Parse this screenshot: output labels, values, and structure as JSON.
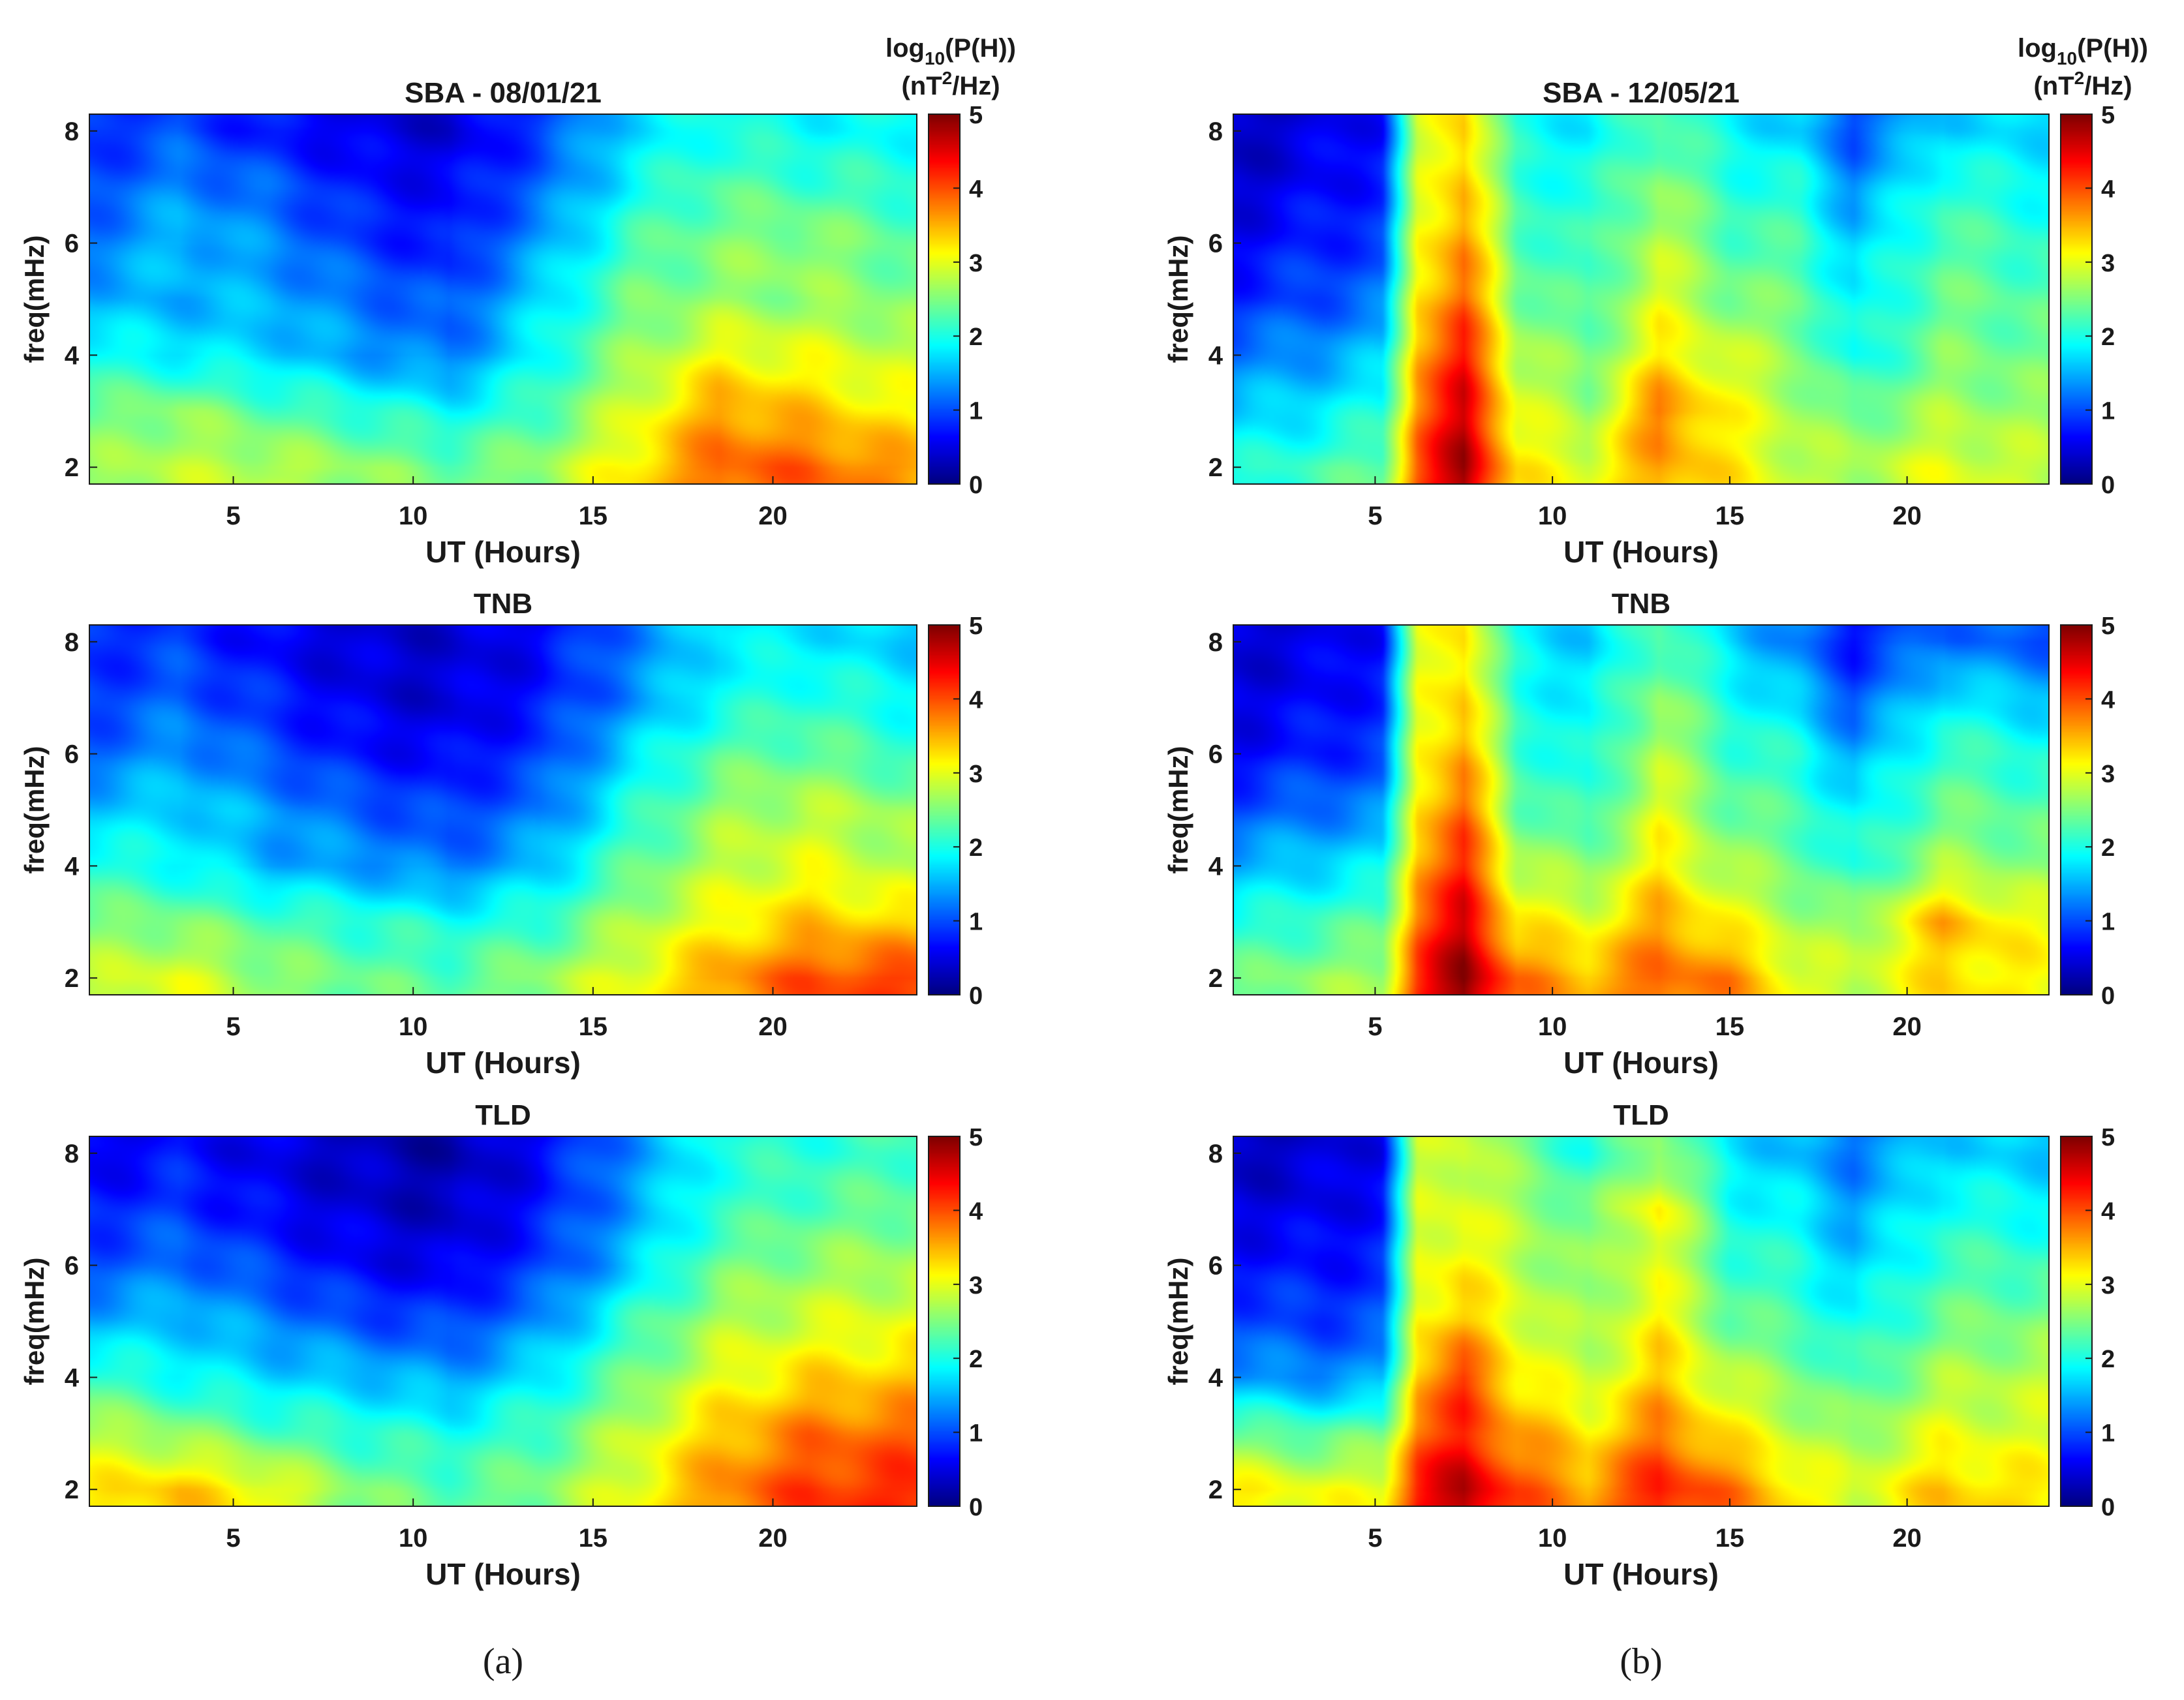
{
  "figure": {
    "panel_labels": [
      "(a)",
      "(b)"
    ]
  },
  "colorbar": {
    "label_line1": "log10(P(H))",
    "label_line2": "(nT2/Hz)",
    "min": 0,
    "max": 5,
    "ticks": [
      "0",
      "1",
      "2",
      "3",
      "4",
      "5"
    ],
    "colormap": "jet"
  },
  "colors": {
    "axis": "#1a1a1a",
    "background": "#ffffff"
  },
  "chart_data": [
    {
      "type": "heatmap",
      "column": "(a)",
      "title": "SBA - 08/01/21",
      "station": "SBA",
      "date": "08/01/21",
      "xlabel": "UT (Hours)",
      "ylabel": "freq(mHz)",
      "xlim": [
        1,
        24
      ],
      "ylim": [
        1.7,
        8.3
      ],
      "xticks": [
        5,
        10,
        15,
        20
      ],
      "yticks": [
        2,
        4,
        6,
        8
      ],
      "clim": [
        0,
        5
      ],
      "x": [
        1,
        3.5,
        6,
        8.5,
        11,
        13.5,
        16,
        18.5,
        21,
        24
      ],
      "y": [
        2,
        3,
        4,
        5,
        6,
        7,
        8
      ],
      "z": [
        [
          2.6,
          2.8,
          2.8,
          2.6,
          2.4,
          2.6,
          3.2,
          3.9,
          3.9,
          3.6
        ],
        [
          2.4,
          2.6,
          2.3,
          2.1,
          1.9,
          2.2,
          2.9,
          3.6,
          3.4,
          3.1
        ],
        [
          2.0,
          1.8,
          1.7,
          1.4,
          1.2,
          1.9,
          2.6,
          3.1,
          3.0,
          2.8
        ],
        [
          1.5,
          1.5,
          1.5,
          1.2,
          1.0,
          1.7,
          2.4,
          2.6,
          2.6,
          2.5
        ],
        [
          1.2,
          1.6,
          1.3,
          0.9,
          0.7,
          1.4,
          2.2,
          2.5,
          2.6,
          2.3
        ],
        [
          1.0,
          1.3,
          1.1,
          0.7,
          0.6,
          1.1,
          1.9,
          2.3,
          2.2,
          2.1
        ],
        [
          0.8,
          1.0,
          0.7,
          0.5,
          0.4,
          0.9,
          1.7,
          2.0,
          1.9,
          1.9
        ]
      ]
    },
    {
      "type": "heatmap",
      "column": "(a)",
      "title": "TNB",
      "station": "TNB",
      "xlabel": "UT (Hours)",
      "ylabel": "freq(mHz)",
      "xlim": [
        1,
        24
      ],
      "ylim": [
        1.7,
        8.3
      ],
      "xticks": [
        5,
        10,
        15,
        20
      ],
      "yticks": [
        2,
        4,
        6,
        8
      ],
      "clim": [
        0,
        5
      ],
      "x": [
        1,
        3.5,
        6,
        8.5,
        11,
        13.5,
        16,
        18.5,
        21,
        24
      ],
      "y": [
        2,
        3,
        4,
        5,
        6,
        7,
        8
      ],
      "z": [
        [
          2.8,
          3.0,
          2.6,
          2.4,
          2.3,
          2.6,
          3.0,
          3.6,
          4.0,
          4.1
        ],
        [
          2.5,
          2.5,
          2.3,
          2.1,
          2.0,
          2.1,
          2.7,
          3.1,
          3.4,
          3.3
        ],
        [
          2.1,
          1.9,
          1.5,
          1.4,
          1.2,
          1.6,
          2.3,
          2.8,
          3.0,
          2.7
        ],
        [
          1.6,
          1.7,
          1.4,
          1.1,
          0.9,
          1.2,
          2.0,
          2.6,
          2.8,
          2.6
        ],
        [
          1.1,
          1.4,
          1.0,
          0.7,
          0.6,
          0.9,
          1.7,
          2.3,
          2.4,
          2.1
        ],
        [
          0.9,
          1.1,
          0.8,
          0.5,
          0.4,
          0.7,
          1.3,
          1.9,
          2.1,
          1.9
        ],
        [
          0.8,
          0.9,
          0.6,
          0.4,
          0.4,
          0.6,
          1.2,
          1.8,
          1.8,
          1.6
        ]
      ]
    },
    {
      "type": "heatmap",
      "column": "(a)",
      "title": "TLD",
      "station": "TLD",
      "xlabel": "UT (Hours)",
      "ylabel": "freq(mHz)",
      "xlim": [
        1,
        24
      ],
      "ylim": [
        1.7,
        8.3
      ],
      "xticks": [
        5,
        10,
        15,
        20
      ],
      "yticks": [
        2,
        4,
        6,
        8
      ],
      "clim": [
        0,
        5
      ],
      "x": [
        1,
        3.5,
        6,
        8.5,
        11,
        13.5,
        16,
        18.5,
        21,
        24
      ],
      "y": [
        2,
        3,
        4,
        5,
        6,
        7,
        8
      ],
      "z": [
        [
          3.2,
          3.4,
          3.1,
          2.5,
          2.3,
          2.5,
          3.0,
          3.7,
          4.1,
          4.2
        ],
        [
          2.8,
          2.6,
          2.3,
          2.1,
          2.0,
          2.2,
          2.8,
          3.4,
          3.8,
          3.9
        ],
        [
          2.2,
          1.9,
          1.7,
          1.6,
          1.4,
          1.8,
          2.4,
          3.0,
          3.3,
          3.4
        ],
        [
          1.5,
          1.6,
          1.3,
          1.0,
          0.9,
          1.3,
          2.1,
          2.7,
          2.9,
          3.0
        ],
        [
          1.0,
          1.2,
          0.9,
          0.6,
          0.5,
          0.9,
          1.6,
          2.4,
          2.6,
          2.7
        ],
        [
          0.8,
          0.9,
          0.6,
          0.4,
          0.3,
          0.7,
          1.4,
          2.1,
          2.3,
          2.4
        ],
        [
          0.5,
          0.7,
          0.5,
          0.3,
          0.2,
          0.6,
          1.3,
          2.0,
          2.1,
          2.2
        ]
      ]
    },
    {
      "type": "heatmap",
      "column": "(b)",
      "title": "SBA - 12/05/21",
      "station": "SBA",
      "date": "12/05/21",
      "xlabel": "UT (Hours)",
      "ylabel": "freq(mHz)",
      "xlim": [
        1,
        24
      ],
      "ylim": [
        1.7,
        8.3
      ],
      "xticks": [
        5,
        10,
        15,
        20
      ],
      "yticks": [
        2,
        4,
        6,
        8
      ],
      "clim": [
        0,
        5
      ],
      "x": [
        1,
        3.5,
        5.2,
        6.2,
        7.5,
        9,
        11,
        13,
        15,
        17,
        18.5,
        21,
        24
      ],
      "y": [
        2,
        3,
        4,
        5,
        6,
        7,
        8
      ],
      "z": [
        [
          2.0,
          2.2,
          2.4,
          4.0,
          4.9,
          3.2,
          3.0,
          3.6,
          3.2,
          2.8,
          2.7,
          3.0,
          2.8
        ],
        [
          1.6,
          1.8,
          2.0,
          3.8,
          4.6,
          3.0,
          2.6,
          3.8,
          3.1,
          2.7,
          2.4,
          2.7,
          2.6
        ],
        [
          1.2,
          1.4,
          1.6,
          3.6,
          4.3,
          2.8,
          2.4,
          3.2,
          2.9,
          2.5,
          1.9,
          2.5,
          2.4
        ],
        [
          0.8,
          1.0,
          1.2,
          3.3,
          3.9,
          2.5,
          2.2,
          3.0,
          2.5,
          2.4,
          1.8,
          2.4,
          2.3
        ],
        [
          0.6,
          0.8,
          0.9,
          3.1,
          3.7,
          2.3,
          2.1,
          2.8,
          2.3,
          2.2,
          1.6,
          2.3,
          2.1
        ],
        [
          0.4,
          0.6,
          0.8,
          2.9,
          3.5,
          2.1,
          2.0,
          2.6,
          2.1,
          2.0,
          1.3,
          2.1,
          1.9
        ],
        [
          0.3,
          0.5,
          0.7,
          2.8,
          3.4,
          2.0,
          1.8,
          2.3,
          1.9,
          1.6,
          1.0,
          1.7,
          1.7
        ]
      ]
    },
    {
      "type": "heatmap",
      "column": "(b)",
      "title": "TNB",
      "station": "TNB",
      "xlabel": "UT (Hours)",
      "ylabel": "freq(mHz)",
      "xlim": [
        1,
        24
      ],
      "ylim": [
        1.7,
        8.3
      ],
      "xticks": [
        5,
        10,
        15,
        20
      ],
      "yticks": [
        2,
        4,
        6,
        8
      ],
      "clim": [
        0,
        5
      ],
      "x": [
        1,
        3.5,
        5.2,
        6.2,
        7.5,
        9,
        11,
        13,
        15,
        17,
        18.5,
        21,
        24
      ],
      "y": [
        2,
        3,
        4,
        5,
        6,
        7,
        8
      ],
      "z": [
        [
          2.4,
          2.6,
          2.7,
          4.2,
          5.0,
          3.8,
          3.5,
          3.9,
          3.7,
          3.0,
          2.8,
          3.3,
          3.1
        ],
        [
          2.0,
          2.2,
          2.3,
          3.9,
          4.6,
          3.2,
          3.0,
          3.6,
          3.1,
          2.7,
          2.6,
          3.5,
          3.0
        ],
        [
          1.5,
          1.7,
          1.8,
          3.6,
          4.2,
          2.8,
          2.5,
          3.2,
          2.7,
          2.4,
          2.0,
          2.7,
          2.5
        ],
        [
          1.0,
          1.2,
          1.3,
          3.3,
          3.9,
          2.4,
          2.1,
          3.0,
          2.4,
          2.2,
          1.8,
          2.4,
          2.3
        ],
        [
          0.6,
          0.8,
          0.9,
          3.1,
          3.6,
          2.2,
          1.9,
          2.8,
          2.2,
          2.0,
          1.4,
          2.2,
          2.0
        ],
        [
          0.5,
          0.6,
          0.8,
          3.0,
          3.4,
          2.0,
          1.8,
          2.6,
          2.0,
          1.6,
          1.0,
          1.8,
          1.6
        ],
        [
          0.4,
          0.5,
          0.7,
          2.9,
          3.3,
          1.9,
          1.6,
          2.3,
          1.7,
          1.2,
          0.7,
          1.2,
          1.0
        ]
      ]
    },
    {
      "type": "heatmap",
      "column": "(b)",
      "title": "TLD",
      "station": "TLD",
      "xlabel": "UT (Hours)",
      "ylabel": "freq(mHz)",
      "xlim": [
        1,
        24
      ],
      "ylim": [
        1.7,
        8.3
      ],
      "xticks": [
        5,
        10,
        15,
        20
      ],
      "yticks": [
        2,
        4,
        6,
        8
      ],
      "clim": [
        0,
        5
      ],
      "x": [
        1,
        3.5,
        5.2,
        6.2,
        7.5,
        9,
        11,
        13,
        15,
        17,
        18.5,
        21,
        24
      ],
      "y": [
        2,
        3,
        4,
        5,
        6,
        7,
        8
      ],
      "z": [
        [
          3.2,
          3.0,
          3.1,
          4.3,
          4.8,
          4.0,
          3.6,
          4.3,
          3.8,
          3.2,
          2.9,
          3.4,
          3.2
        ],
        [
          2.4,
          2.3,
          2.4,
          3.9,
          4.2,
          3.6,
          3.2,
          3.8,
          3.2,
          2.8,
          2.6,
          3.0,
          2.9
        ],
        [
          1.4,
          1.3,
          1.4,
          3.5,
          4.1,
          3.2,
          2.8,
          3.4,
          2.8,
          2.5,
          2.2,
          2.7,
          2.8
        ],
        [
          1.0,
          0.9,
          1.0,
          3.2,
          3.4,
          3.0,
          2.6,
          3.2,
          2.4,
          2.2,
          1.9,
          2.4,
          2.5
        ],
        [
          0.7,
          0.7,
          0.8,
          3.0,
          3.2,
          2.8,
          2.5,
          3.0,
          2.2,
          2.0,
          1.6,
          2.2,
          2.2
        ],
        [
          0.5,
          0.5,
          0.7,
          2.9,
          3.0,
          2.7,
          2.4,
          3.2,
          2.0,
          1.8,
          1.4,
          2.0,
          1.9
        ],
        [
          0.3,
          0.4,
          0.6,
          2.8,
          2.9,
          2.5,
          2.0,
          2.6,
          1.8,
          1.5,
          1.2,
          1.7,
          1.6
        ]
      ]
    }
  ]
}
